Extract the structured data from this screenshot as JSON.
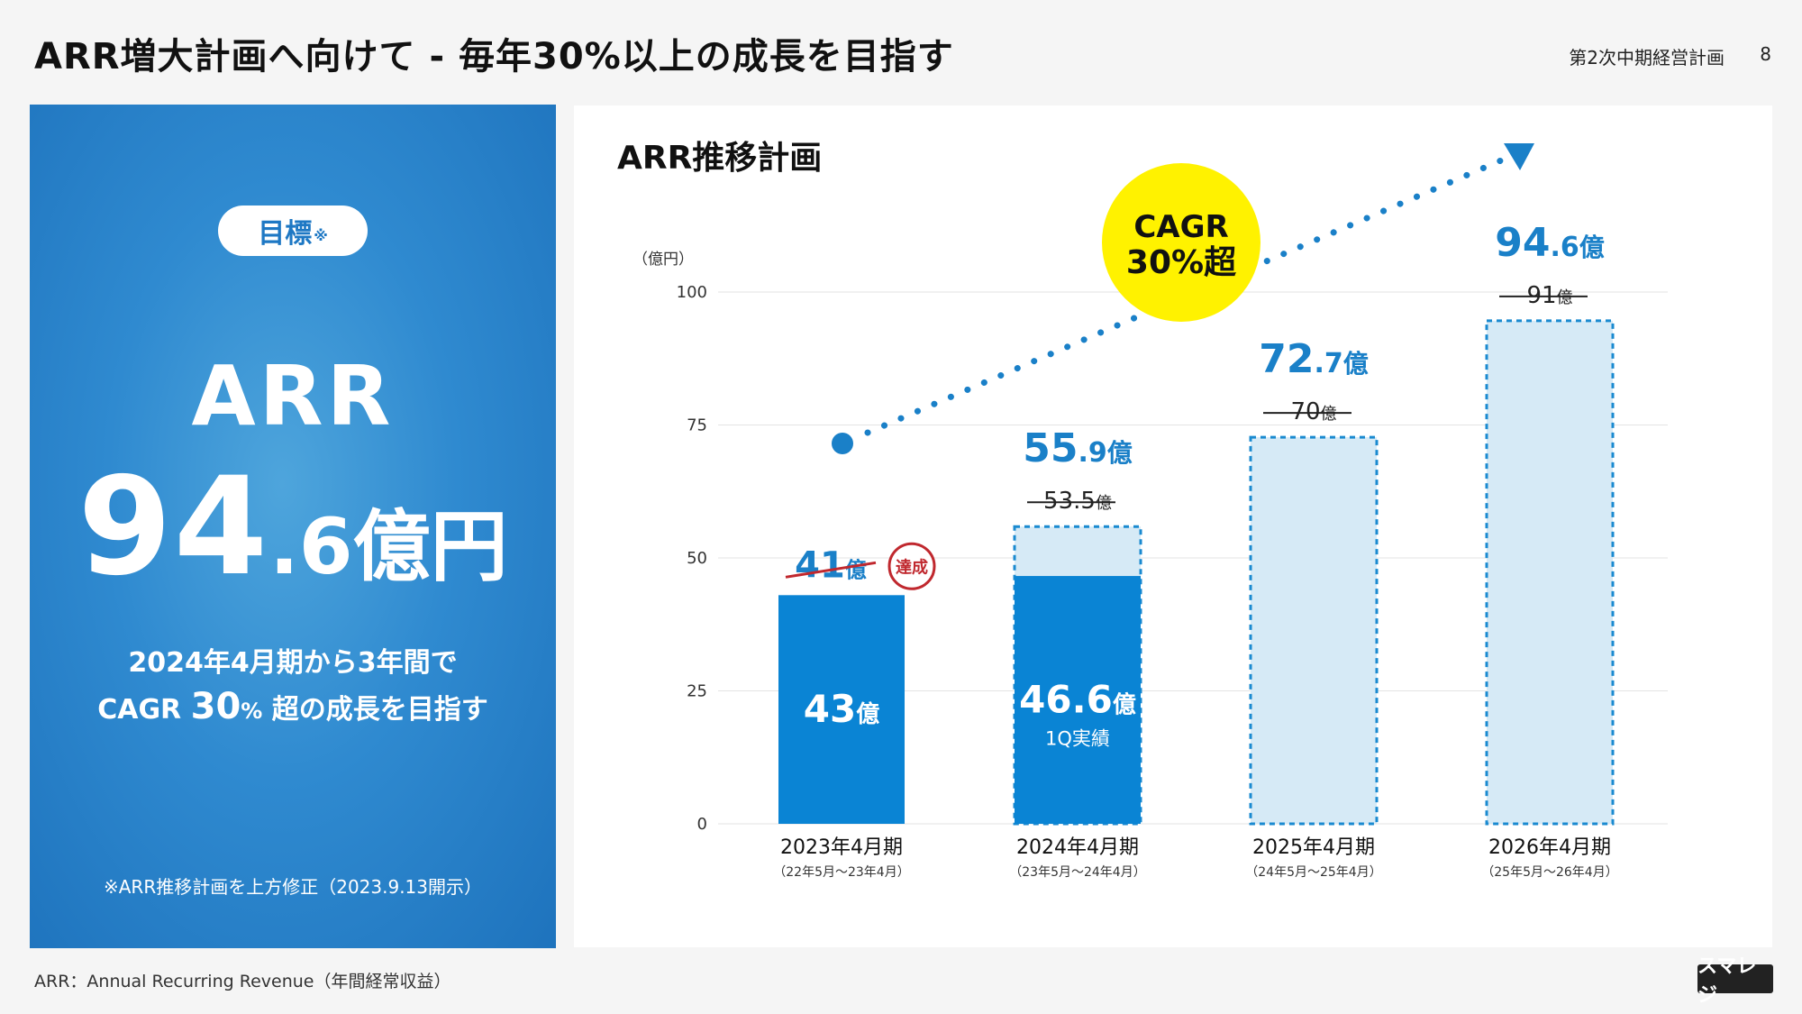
{
  "header": {
    "title": "ARR増大計画へ向けて - 毎年30%以上の成長を目指す",
    "doc_name": "第2次中期経営計画",
    "page_number": "8"
  },
  "goal_panel": {
    "badge": "目標",
    "badge_note_mark": "※",
    "metric_name": "ARR",
    "value_int": "94",
    "value_dec": ".6",
    "value_unit": "億円",
    "desc_line1": "2024年4月期から3年間で",
    "desc_line2_pre": "CAGR ",
    "desc_line2_num": "30",
    "desc_line2_pct": "%",
    "desc_line2_post": " 超の成長を目指す",
    "note": "※ARR推移計画を上方修正（2023.9.13開示）"
  },
  "chart_data": {
    "type": "bar",
    "title": "ARR推移計画",
    "ylabel": "（億円）",
    "ylim": [
      0,
      100
    ],
    "yticks": [
      "0",
      "25",
      "50",
      "75",
      "100"
    ],
    "grid": true,
    "categories": [
      "2023年4月期",
      "2024年4月期",
      "2025年4月期",
      "2026年4月期"
    ],
    "sub_labels": [
      "（22年5月～23年4月）",
      "（23年5月～24年4月）",
      "（24年5月～25年4月）",
      "（25年5月～26年4月）"
    ],
    "actual_values": [
      43,
      46.6,
      null,
      null
    ],
    "actual_labels": [
      {
        "num": "43",
        "unit": "億",
        "note": ""
      },
      {
        "num": "46.6",
        "unit": "億",
        "note": "1Q実績"
      },
      null,
      null
    ],
    "plan_values": [
      null,
      55.9,
      72.7,
      94.6
    ],
    "plan_labels": [
      null,
      {
        "int": "55",
        "dec": ".9",
        "unit": "億"
      },
      {
        "int": "72",
        "dec": ".7",
        "unit": "億"
      },
      {
        "int": "94",
        "dec": ".6",
        "unit": "億"
      }
    ],
    "previous_plan": [
      {
        "num": "41",
        "unit": "億"
      },
      {
        "num": "53.5",
        "unit": "億"
      },
      {
        "num": "70",
        "unit": "億"
      },
      {
        "num": "91",
        "unit": "億"
      }
    ],
    "achieved_stamp": "達成",
    "cagr_badge": [
      "CAGR",
      "30%超"
    ],
    "colors": {
      "actual": "#0a84d4",
      "plan_fill": "#d6eaf6",
      "plan_border": "#1a8ad0",
      "label_blue": "#1a80c8",
      "stamp_red": "#c0282e",
      "badge_yellow": "#fff200",
      "grid": "#e3e3e3"
    }
  },
  "footer": {
    "footnote": "ARR：Annual Recurring Revenue（年間経常収益）",
    "logo_text": "スマレジ"
  }
}
